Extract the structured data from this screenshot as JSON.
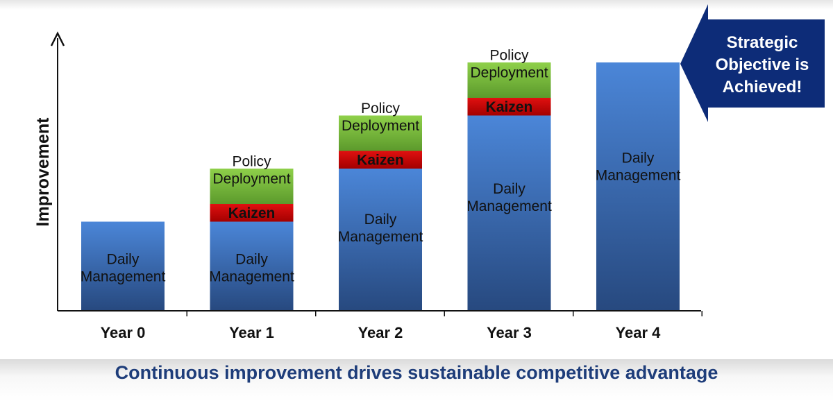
{
  "chart_data": {
    "type": "bar",
    "stacked": true,
    "title": "",
    "xlabel": "",
    "ylabel": "Improvement",
    "ylim": [
      0,
      14
    ],
    "categories": [
      "Year 0",
      "Year 1",
      "Year 2",
      "Year 3",
      "Year 4"
    ],
    "series": [
      {
        "name": "Daily Management",
        "label_lines": [
          "Daily",
          "Management"
        ],
        "color": "#3f74c4",
        "values": [
          5,
          5,
          8,
          11,
          14
        ]
      },
      {
        "name": "Kaizen",
        "label_lines": [
          "Kaizen"
        ],
        "color": "#cc0000",
        "values": [
          0,
          1,
          1,
          1,
          0
        ]
      },
      {
        "name": "Policy Deployment",
        "label_lines": [
          "Policy",
          "Deployment"
        ],
        "color": "#7ab83e",
        "values": [
          0,
          2,
          2,
          2,
          0
        ]
      }
    ],
    "annotation": {
      "lines": [
        "Strategic",
        "Objective is",
        "Achieved!"
      ],
      "color": "#0d2c78"
    }
  },
  "footer": {
    "text": "Continuous improvement drives sustainable competitive advantage"
  },
  "colors": {
    "footer_text": "#1e3d7a",
    "axis": "#111111"
  }
}
